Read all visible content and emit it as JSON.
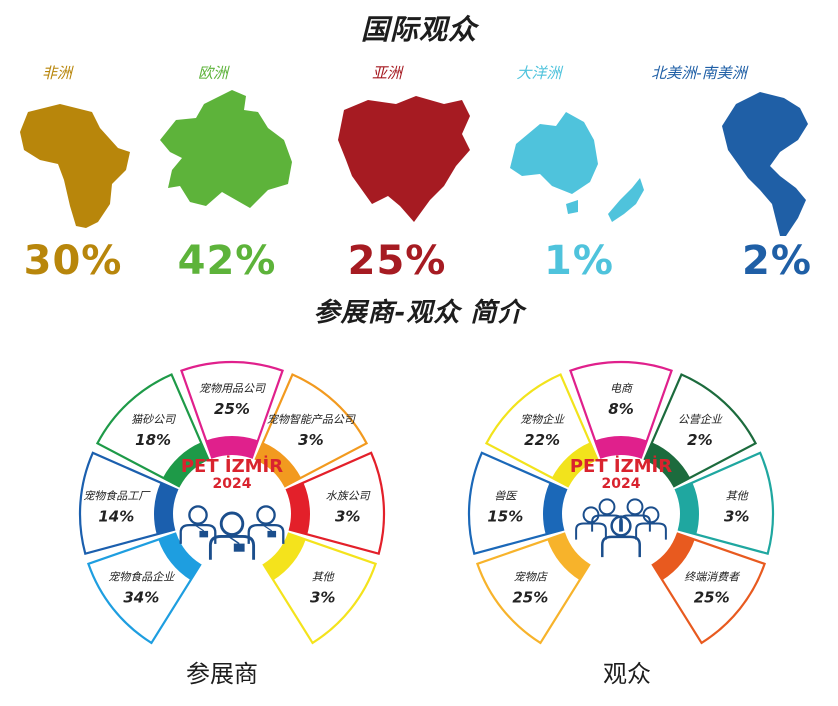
{
  "title_international": "国际观众",
  "regions": [
    {
      "name": "非洲",
      "percent": "30%",
      "color": "#B8860B",
      "icon": "africa-map-icon"
    },
    {
      "name": "欧洲",
      "percent": "42%",
      "color": "#5DB33A",
      "icon": "europe-map-icon"
    },
    {
      "name": "亚洲",
      "percent": "25%",
      "color": "#A61B22",
      "icon": "asia-map-icon"
    },
    {
      "name": "大洋洲",
      "percent": "1%",
      "color": "#4FC3DC",
      "icon": "oceania-map-icon"
    },
    {
      "name": "北美洲-南美洲",
      "percent": "2%",
      "color": "#1F5FA6",
      "icon": "americas-map-icon"
    }
  ],
  "title_intro": "参展商-观众 简介",
  "logo_text": "PET İZMİR",
  "logo_year": "2024",
  "exhibitors": {
    "label": "参展商",
    "segments": [
      {
        "label": "宠物食品企业",
        "value": "34%",
        "color": "#1E9EE0"
      },
      {
        "label": "宠物食品工厂",
        "value": "14%",
        "color": "#1B5FAE"
      },
      {
        "label": "猫砂公司",
        "value": "18%",
        "color": "#1E9A48"
      },
      {
        "label": "宠物用品公司",
        "value": "25%",
        "color": "#E0208C"
      },
      {
        "label": "宠物智能产品公司",
        "value": "3%",
        "color": "#F29A1F"
      },
      {
        "label": "水族公司",
        "value": "3%",
        "color": "#E3202A"
      },
      {
        "label": "其他",
        "value": "3%",
        "color": "#F4E31C"
      }
    ]
  },
  "visitors": {
    "label": "观众",
    "segments": [
      {
        "label": "宠物店",
        "value": "25%",
        "color": "#F7B32B"
      },
      {
        "label": "兽医",
        "value": "15%",
        "color": "#1B68B8"
      },
      {
        "label": "宠物企业",
        "value": "22%",
        "color": "#F2E31C"
      },
      {
        "label": "电商",
        "value": "8%",
        "color": "#E0208C"
      },
      {
        "label": "公营企业",
        "value": "2%",
        "color": "#1C6B3D"
      },
      {
        "label": "其他",
        "value": "3%",
        "color": "#1FA7A0"
      },
      {
        "label": "终端消费者",
        "value": "25%",
        "color": "#E85A1F"
      }
    ]
  }
}
